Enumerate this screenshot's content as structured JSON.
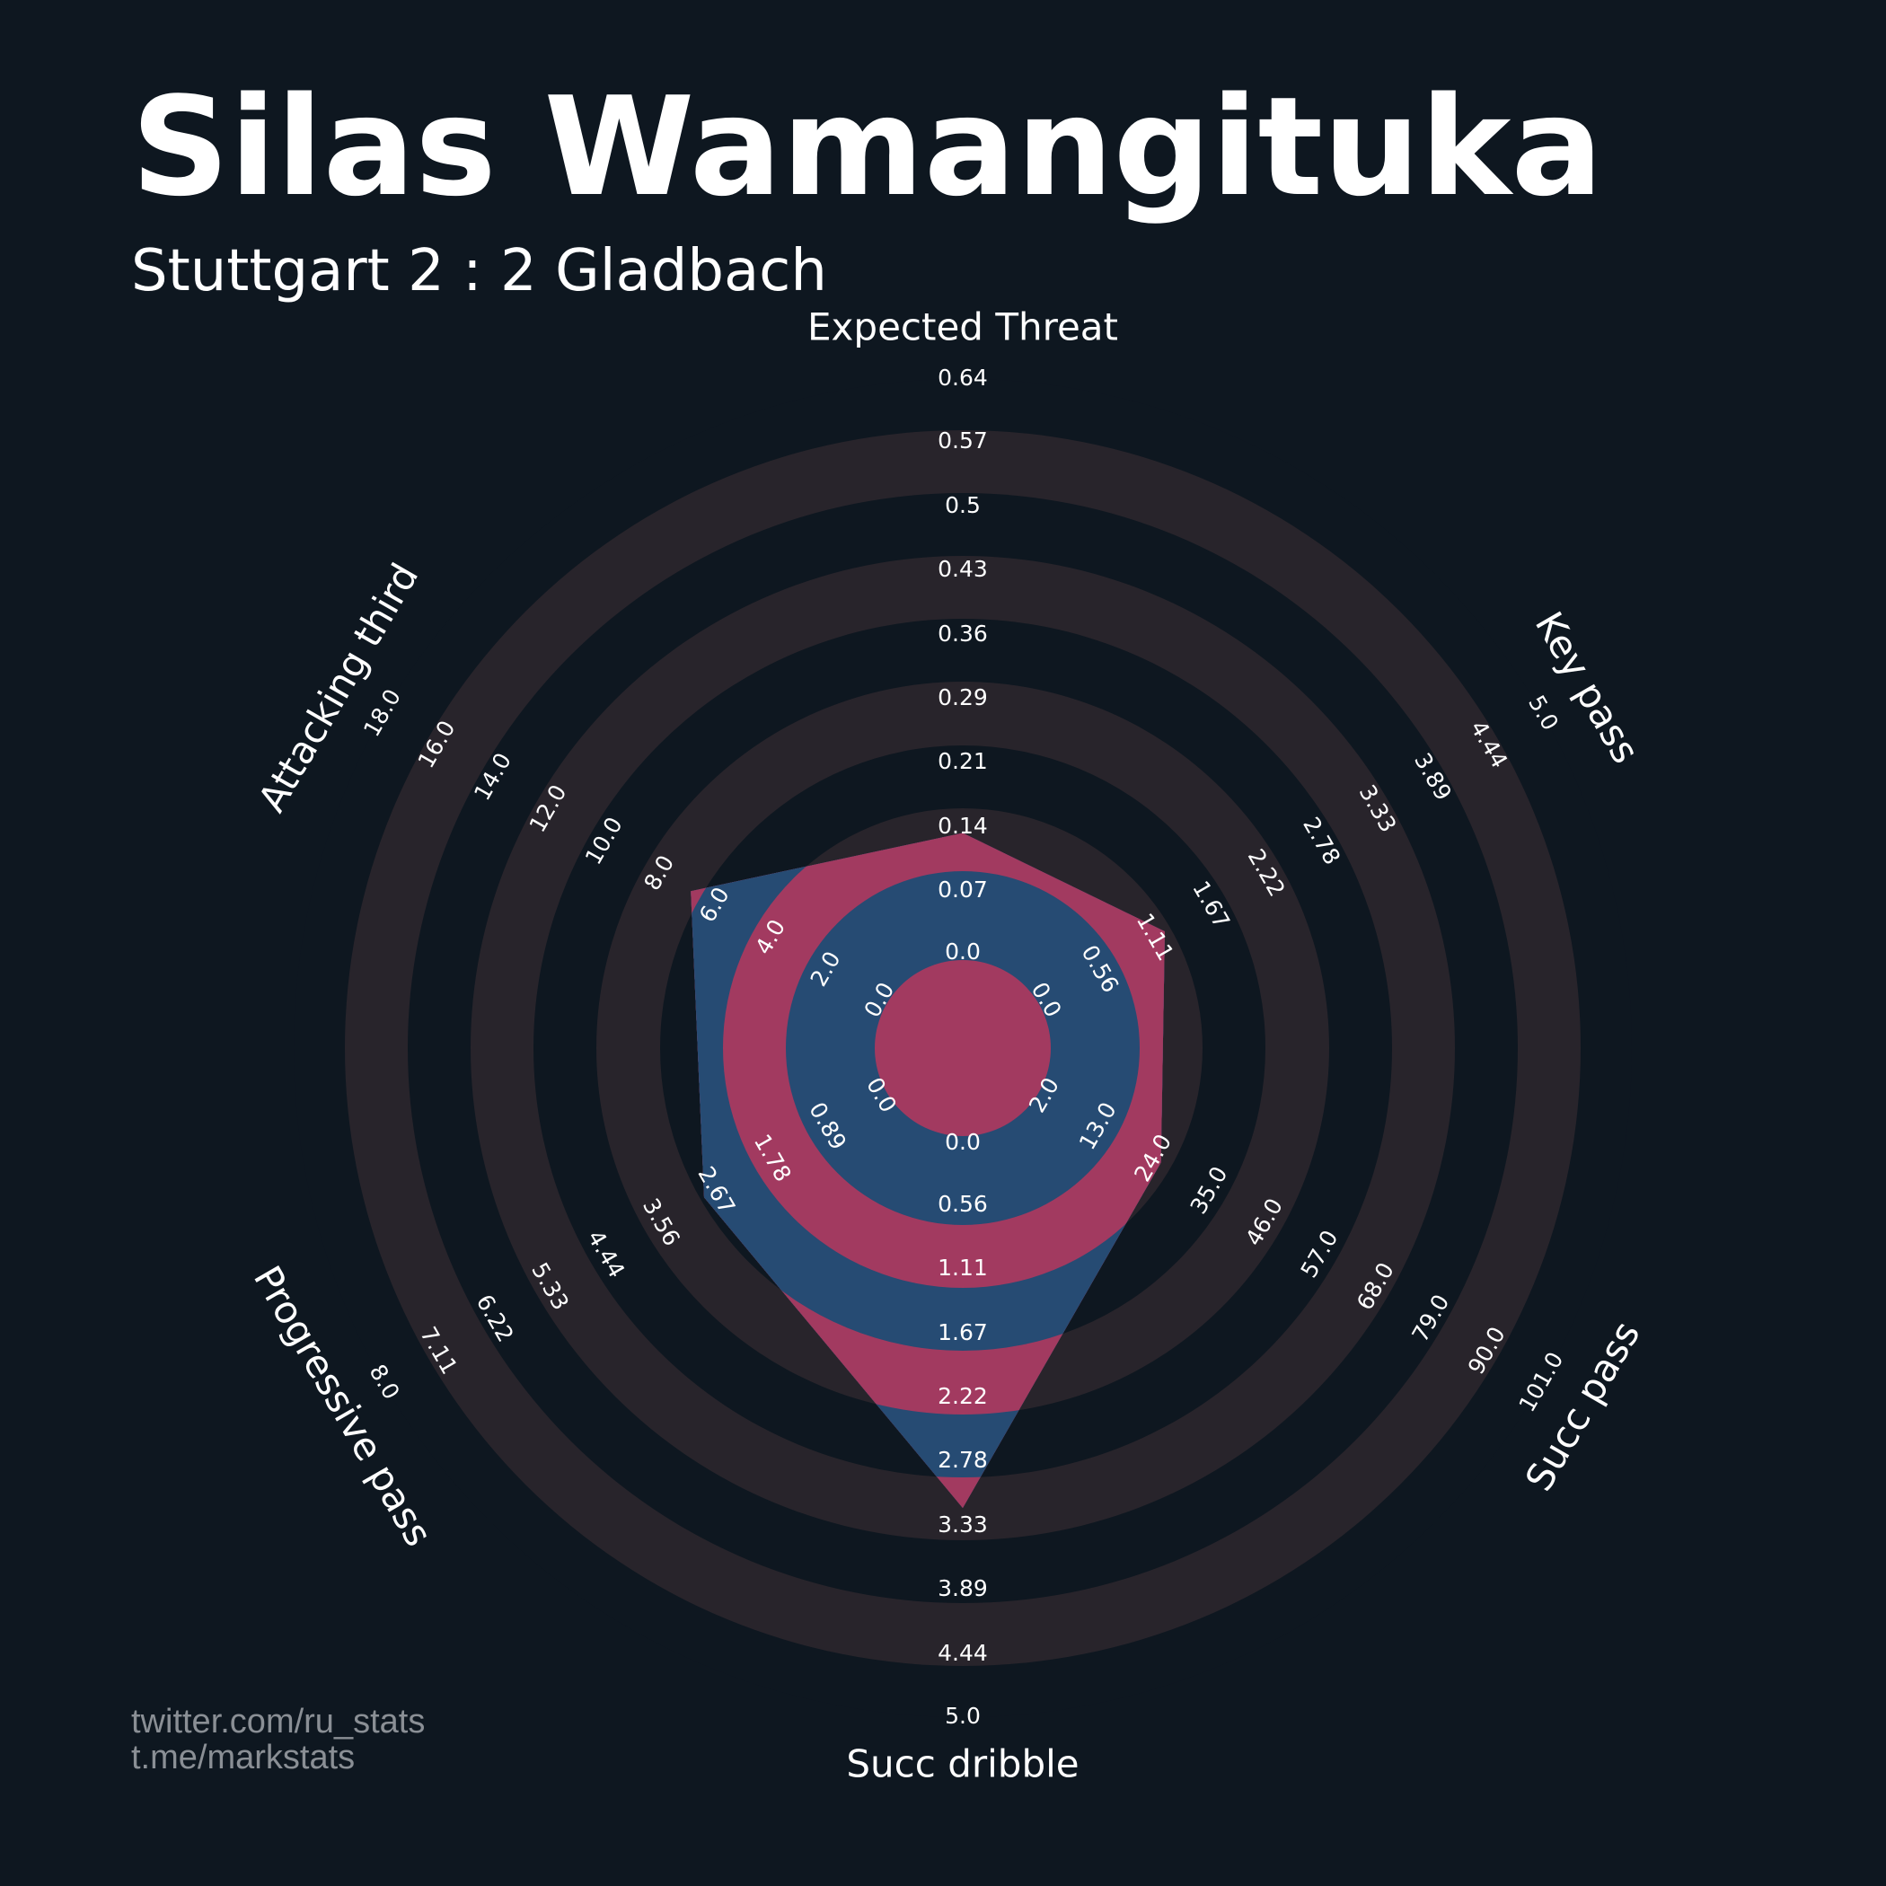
{
  "header": {
    "title": "Silas Wamangituka",
    "subtitle": "Stuttgart 2 : 2 Gladbach"
  },
  "footer": {
    "credit_1": "twitter.com/ru_stats",
    "credit_2": "t.me/markstats"
  },
  "colors": {
    "background": "#0e1720",
    "ring_dark": "#28242b",
    "ring_light": "#0e1720",
    "fill_blue": "#264b73",
    "fill_pink": "#a23a60",
    "text": "#ffffff",
    "credit_text": "#8a8f95"
  },
  "chart_data": {
    "type": "radar",
    "params": [
      "Expected Threat",
      "Key pass",
      "Succ pass",
      "Succ dribble",
      "Progressive pass",
      "Attacking third"
    ],
    "ranges": [
      {
        "param": "Expected Threat",
        "min": 0.0,
        "max": 0.64
      },
      {
        "param": "Key pass",
        "min": 0.0,
        "max": 5.0
      },
      {
        "param": "Succ pass",
        "min": 2.0,
        "max": 101.0
      },
      {
        "param": "Succ dribble",
        "min": 0.0,
        "max": 5.0
      },
      {
        "param": "Progressive pass",
        "min": 0.0,
        "max": 8.0
      },
      {
        "param": "Attacking third",
        "min": 0.0,
        "max": 18.0
      }
    ],
    "tick_labels": [
      [
        "0.0",
        "0.07",
        "0.14",
        "0.21",
        "0.29",
        "0.36",
        "0.43",
        "0.5",
        "0.57",
        "0.64"
      ],
      [
        "0.0",
        "0.56",
        "1.11",
        "1.67",
        "2.22",
        "2.78",
        "3.33",
        "3.89",
        "4.44",
        "5.0"
      ],
      [
        "2.0",
        "13.0",
        "24.0",
        "35.0",
        "46.0",
        "57.0",
        "68.0",
        "79.0",
        "90.0",
        "101.0"
      ],
      [
        "0.0",
        "0.56",
        "1.11",
        "1.67",
        "2.22",
        "2.78",
        "3.33",
        "3.89",
        "4.44",
        "5.0"
      ],
      [
        "0.0",
        "0.89",
        "1.78",
        "2.67",
        "3.56",
        "4.44",
        "5.33",
        "6.22",
        "7.11",
        "8.0"
      ],
      [
        "0.0",
        "2.0",
        "4.0",
        "6.0",
        "8.0",
        "10.0",
        "12.0",
        "14.0",
        "16.0",
        "18.0"
      ]
    ],
    "series": [
      {
        "values": [
          0.14,
          1.25,
          26.0,
          3.2,
          2.9,
          7.0
        ]
      }
    ]
  }
}
